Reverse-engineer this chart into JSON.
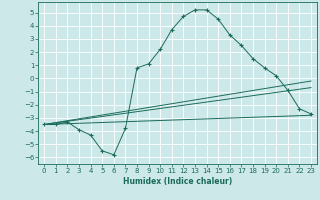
{
  "xlabel": "Humidex (Indice chaleur)",
  "background_color": "#cde8e8",
  "grid_color": "#b0d0d0",
  "line_color": "#1a6b5a",
  "xlim": [
    -0.5,
    23.5
  ],
  "ylim": [
    -6.5,
    5.8
  ],
  "yticks": [
    -6,
    -5,
    -4,
    -3,
    -2,
    -1,
    0,
    1,
    2,
    3,
    4,
    5
  ],
  "xticks": [
    0,
    1,
    2,
    3,
    4,
    5,
    6,
    7,
    8,
    9,
    10,
    11,
    12,
    13,
    14,
    15,
    16,
    17,
    18,
    19,
    20,
    21,
    22,
    23
  ],
  "series": [
    {
      "x": [
        0,
        1,
        2,
        3,
        4,
        5,
        6,
        7,
        8,
        9,
        10,
        11,
        12,
        13,
        14,
        15,
        16,
        17,
        18,
        19,
        20,
        21,
        22,
        23
      ],
      "y": [
        -3.5,
        -3.5,
        -3.3,
        -3.9,
        -4.3,
        -5.5,
        -5.8,
        -3.8,
        0.8,
        1.1,
        2.2,
        3.7,
        4.7,
        5.2,
        5.2,
        4.5,
        3.3,
        2.5,
        1.5,
        0.8,
        0.2,
        -0.9,
        -2.3,
        -2.7
      ],
      "marker": true
    },
    {
      "x": [
        0,
        23
      ],
      "y": [
        -3.5,
        -0.2
      ],
      "marker": false
    },
    {
      "x": [
        0,
        23
      ],
      "y": [
        -3.5,
        -0.7
      ],
      "marker": false
    },
    {
      "x": [
        0,
        23
      ],
      "y": [
        -3.5,
        -2.8
      ],
      "marker": false
    }
  ]
}
